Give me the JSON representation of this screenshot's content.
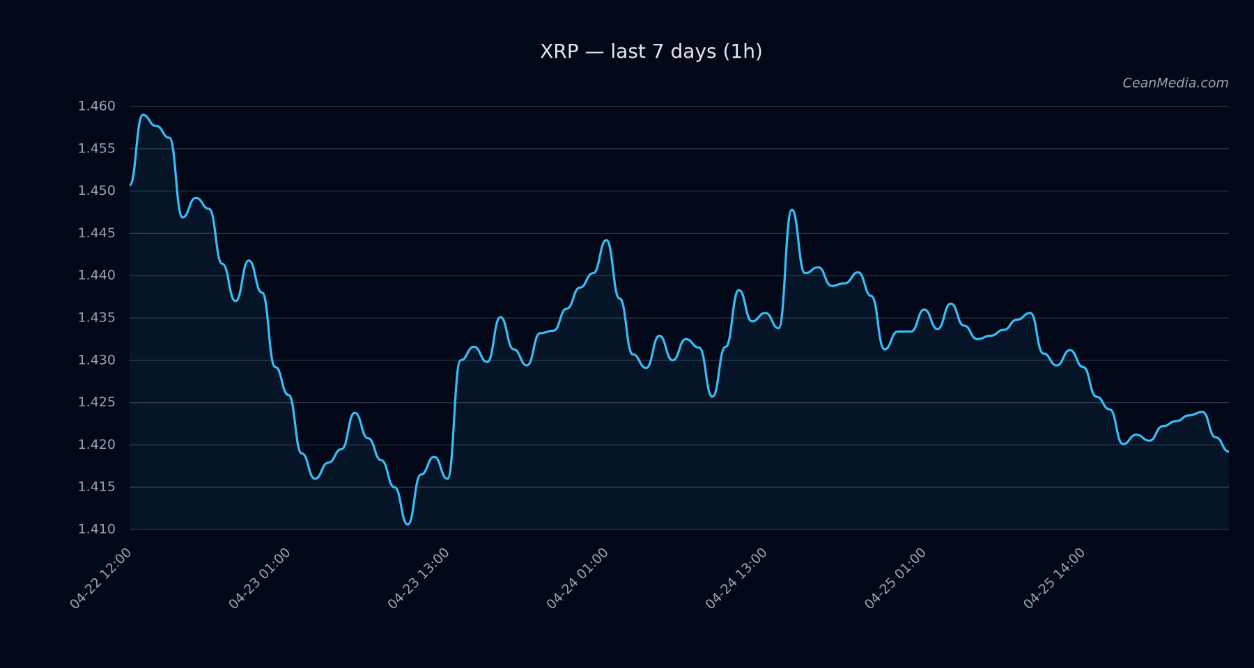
{
  "chart_data": {
    "type": "line",
    "title": "XRP — last 7 days (1h)",
    "watermark": "CeanMedia.com",
    "categories": [
      "04-22 12:00",
      null,
      null,
      null,
      null,
      null,
      null,
      null,
      null,
      null,
      null,
      null,
      "04-23 01:00",
      null,
      null,
      null,
      null,
      null,
      null,
      null,
      null,
      null,
      null,
      null,
      "04-23 13:00",
      null,
      null,
      null,
      null,
      null,
      null,
      null,
      null,
      null,
      null,
      null,
      "04-24 01:00",
      null,
      null,
      null,
      null,
      null,
      null,
      null,
      null,
      null,
      null,
      null,
      "04-24 13:00",
      null,
      null,
      null,
      null,
      null,
      null,
      null,
      null,
      null,
      null,
      null,
      "04-25 01:00",
      null,
      null,
      null,
      null,
      null,
      null,
      null,
      null,
      null,
      null,
      null,
      "04-25 14:00",
      null,
      null,
      null,
      null,
      null,
      null,
      null,
      null,
      null,
      null,
      null
    ],
    "series": [
      {
        "name": "XRP",
        "color": "#38bdf8",
        "values": [
          1.4507,
          1.459,
          1.4577,
          1.4563,
          1.4469,
          1.4492,
          1.4479,
          1.4414,
          1.437,
          1.4418,
          1.438,
          1.4292,
          1.4259,
          1.419,
          1.416,
          1.4179,
          1.4195,
          1.4238,
          1.4208,
          1.4182,
          1.415,
          1.4106,
          1.4165,
          1.4186,
          1.416,
          1.43,
          1.4316,
          1.4298,
          1.4351,
          1.4313,
          1.4294,
          1.4332,
          1.4335,
          1.4361,
          1.4386,
          1.4403,
          1.4442,
          1.4373,
          1.4307,
          1.4291,
          1.4329,
          1.43,
          1.4325,
          1.4315,
          1.4257,
          1.4316,
          1.4383,
          1.4346,
          1.4356,
          1.4338,
          1.4478,
          1.4403,
          1.441,
          1.4388,
          1.4391,
          1.4404,
          1.4376,
          1.4313,
          1.4334,
          1.4334,
          1.436,
          1.4337,
          1.4367,
          1.4341,
          1.4325,
          1.4329,
          1.4336,
          1.4348,
          1.4356,
          1.4308,
          1.4294,
          1.4312,
          1.4292,
          1.4257,
          1.4242,
          1.4201,
          1.4212,
          1.4205,
          1.4222,
          1.4228,
          1.4235,
          1.4239,
          1.4209,
          1.4192
        ]
      }
    ],
    "ylim": [
      1.41,
      1.46
    ],
    "yticks": [
      {
        "value": 1.41,
        "label": "1.410"
      },
      1.415,
      {
        "value": 1.42,
        "label": "1.420"
      },
      1.425,
      {
        "value": 1.43,
        "label": "1.430"
      },
      1.435,
      {
        "value": 1.44,
        "label": "1.440"
      },
      1.445,
      {
        "value": 1.45,
        "label": "1.450"
      },
      1.455,
      {
        "value": 1.46,
        "label": "1.460"
      }
    ],
    "grid": true,
    "area": true
  }
}
